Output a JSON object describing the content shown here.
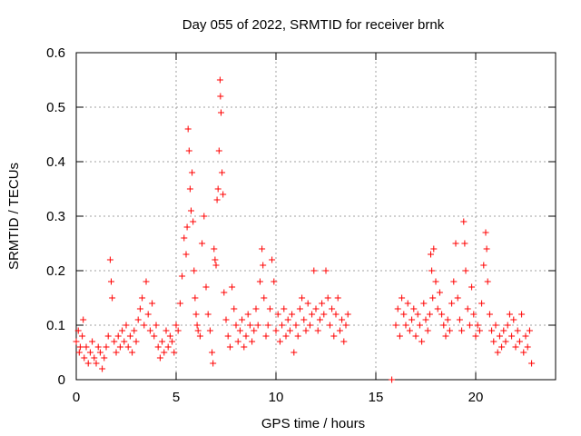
{
  "chart_data": {
    "type": "scatter",
    "title": "Day 055 of 2022, SRMTID for receiver brnk",
    "xlabel": "GPS time / hours",
    "ylabel": "SRMTID / TECUs",
    "xlim": [
      0,
      24
    ],
    "ylim": [
      0,
      0.6
    ],
    "x_ticks": [
      0,
      5,
      10,
      15,
      20
    ],
    "x_tick_labels": [
      "0",
      "5",
      "10",
      "15",
      "20"
    ],
    "y_ticks": [
      0,
      0.1,
      0.2,
      0.3,
      0.4,
      0.5,
      0.6
    ],
    "y_tick_labels": [
      "0",
      "0.1",
      "0.2",
      "0.3",
      "0.4",
      "0.5",
      "0.6"
    ],
    "grid": true,
    "marker": "+",
    "marker_color": "#ff0000",
    "series": [
      {
        "name": "SRMTID",
        "points": [
          [
            0.0,
            0.07
          ],
          [
            0.1,
            0.09
          ],
          [
            0.15,
            0.05
          ],
          [
            0.2,
            0.06
          ],
          [
            0.3,
            0.08
          ],
          [
            0.35,
            0.11
          ],
          [
            0.4,
            0.04
          ],
          [
            0.5,
            0.06
          ],
          [
            0.6,
            0.03
          ],
          [
            0.7,
            0.05
          ],
          [
            0.8,
            0.07
          ],
          [
            0.9,
            0.04
          ],
          [
            1.0,
            0.03
          ],
          [
            1.1,
            0.06
          ],
          [
            1.2,
            0.05
          ],
          [
            1.3,
            0.02
          ],
          [
            1.4,
            0.04
          ],
          [
            1.5,
            0.06
          ],
          [
            1.6,
            0.08
          ],
          [
            1.7,
            0.22
          ],
          [
            1.75,
            0.18
          ],
          [
            1.8,
            0.15
          ],
          [
            1.9,
            0.07
          ],
          [
            2.0,
            0.05
          ],
          [
            2.1,
            0.08
          ],
          [
            2.2,
            0.06
          ],
          [
            2.3,
            0.09
          ],
          [
            2.4,
            0.07
          ],
          [
            2.5,
            0.1
          ],
          [
            2.6,
            0.06
          ],
          [
            2.7,
            0.08
          ],
          [
            2.8,
            0.05
          ],
          [
            2.9,
            0.09
          ],
          [
            3.0,
            0.07
          ],
          [
            3.1,
            0.11
          ],
          [
            3.2,
            0.13
          ],
          [
            3.3,
            0.15
          ],
          [
            3.4,
            0.1
          ],
          [
            3.5,
            0.18
          ],
          [
            3.6,
            0.12
          ],
          [
            3.7,
            0.09
          ],
          [
            3.8,
            0.14
          ],
          [
            3.9,
            0.08
          ],
          [
            4.0,
            0.1
          ],
          [
            4.1,
            0.06
          ],
          [
            4.2,
            0.04
          ],
          [
            4.3,
            0.07
          ],
          [
            4.4,
            0.05
          ],
          [
            4.5,
            0.09
          ],
          [
            4.6,
            0.06
          ],
          [
            4.7,
            0.08
          ],
          [
            4.8,
            0.07
          ],
          [
            4.9,
            0.05
          ],
          [
            5.0,
            0.1
          ],
          [
            5.1,
            0.09
          ],
          [
            5.2,
            0.14
          ],
          [
            5.3,
            0.19
          ],
          [
            5.4,
            0.26
          ],
          [
            5.5,
            0.23
          ],
          [
            5.55,
            0.28
          ],
          [
            5.6,
            0.46
          ],
          [
            5.65,
            0.42
          ],
          [
            5.7,
            0.35
          ],
          [
            5.75,
            0.31
          ],
          [
            5.8,
            0.38
          ],
          [
            5.85,
            0.29
          ],
          [
            5.9,
            0.2
          ],
          [
            5.95,
            0.15
          ],
          [
            6.0,
            0.12
          ],
          [
            6.05,
            0.1
          ],
          [
            6.1,
            0.09
          ],
          [
            6.2,
            0.08
          ],
          [
            6.3,
            0.25
          ],
          [
            6.4,
            0.3
          ],
          [
            6.5,
            0.17
          ],
          [
            6.6,
            0.12
          ],
          [
            6.7,
            0.09
          ],
          [
            6.8,
            0.05
          ],
          [
            6.85,
            0.03
          ],
          [
            6.9,
            0.24
          ],
          [
            6.95,
            0.22
          ],
          [
            7.0,
            0.21
          ],
          [
            7.05,
            0.33
          ],
          [
            7.1,
            0.35
          ],
          [
            7.15,
            0.42
          ],
          [
            7.2,
            0.55
          ],
          [
            7.22,
            0.52
          ],
          [
            7.25,
            0.49
          ],
          [
            7.3,
            0.38
          ],
          [
            7.35,
            0.34
          ],
          [
            7.4,
            0.16
          ],
          [
            7.5,
            0.11
          ],
          [
            7.6,
            0.08
          ],
          [
            7.7,
            0.06
          ],
          [
            7.8,
            0.17
          ],
          [
            7.9,
            0.13
          ],
          [
            8.0,
            0.1
          ],
          [
            8.1,
            0.07
          ],
          [
            8.2,
            0.09
          ],
          [
            8.3,
            0.11
          ],
          [
            8.4,
            0.06
          ],
          [
            8.5,
            0.08
          ],
          [
            8.6,
            0.12
          ],
          [
            8.7,
            0.1
          ],
          [
            8.8,
            0.07
          ],
          [
            8.9,
            0.09
          ],
          [
            9.0,
            0.13
          ],
          [
            9.1,
            0.1
          ],
          [
            9.2,
            0.18
          ],
          [
            9.3,
            0.24
          ],
          [
            9.35,
            0.21
          ],
          [
            9.4,
            0.15
          ],
          [
            9.5,
            0.08
          ],
          [
            9.6,
            0.1
          ],
          [
            9.7,
            0.13
          ],
          [
            9.8,
            0.22
          ],
          [
            9.9,
            0.18
          ],
          [
            10.0,
            0.09
          ],
          [
            10.1,
            0.12
          ],
          [
            10.2,
            0.07
          ],
          [
            10.3,
            0.1
          ],
          [
            10.4,
            0.13
          ],
          [
            10.5,
            0.08
          ],
          [
            10.6,
            0.11
          ],
          [
            10.7,
            0.09
          ],
          [
            10.8,
            0.12
          ],
          [
            10.9,
            0.05
          ],
          [
            11.0,
            0.1
          ],
          [
            11.1,
            0.08
          ],
          [
            11.2,
            0.13
          ],
          [
            11.3,
            0.15
          ],
          [
            11.4,
            0.11
          ],
          [
            11.5,
            0.09
          ],
          [
            11.6,
            0.14
          ],
          [
            11.7,
            0.1
          ],
          [
            11.8,
            0.12
          ],
          [
            11.9,
            0.2
          ],
          [
            12.0,
            0.13
          ],
          [
            12.1,
            0.09
          ],
          [
            12.2,
            0.11
          ],
          [
            12.3,
            0.14
          ],
          [
            12.4,
            0.12
          ],
          [
            12.5,
            0.2
          ],
          [
            12.6,
            0.15
          ],
          [
            12.7,
            0.1
          ],
          [
            12.8,
            0.13
          ],
          [
            12.9,
            0.08
          ],
          [
            13.0,
            0.12
          ],
          [
            13.1,
            0.15
          ],
          [
            13.2,
            0.09
          ],
          [
            13.3,
            0.11
          ],
          [
            13.4,
            0.07
          ],
          [
            13.5,
            0.1
          ],
          [
            13.6,
            0.12
          ],
          [
            15.8,
            0.0
          ],
          [
            16.0,
            0.1
          ],
          [
            16.1,
            0.13
          ],
          [
            16.2,
            0.08
          ],
          [
            16.3,
            0.15
          ],
          [
            16.4,
            0.12
          ],
          [
            16.5,
            0.1
          ],
          [
            16.6,
            0.14
          ],
          [
            16.7,
            0.09
          ],
          [
            16.8,
            0.11
          ],
          [
            16.9,
            0.13
          ],
          [
            17.0,
            0.08
          ],
          [
            17.1,
            0.12
          ],
          [
            17.2,
            0.1
          ],
          [
            17.3,
            0.07
          ],
          [
            17.4,
            0.14
          ],
          [
            17.5,
            0.11
          ],
          [
            17.6,
            0.09
          ],
          [
            17.7,
            0.12
          ],
          [
            17.75,
            0.23
          ],
          [
            17.8,
            0.2
          ],
          [
            17.85,
            0.15
          ],
          [
            17.9,
            0.24
          ],
          [
            18.0,
            0.18
          ],
          [
            18.1,
            0.13
          ],
          [
            18.2,
            0.16
          ],
          [
            18.3,
            0.12
          ],
          [
            18.4,
            0.1
          ],
          [
            18.5,
            0.08
          ],
          [
            18.6,
            0.11
          ],
          [
            18.7,
            0.09
          ],
          [
            18.8,
            0.14
          ],
          [
            18.9,
            0.18
          ],
          [
            19.0,
            0.25
          ],
          [
            19.1,
            0.15
          ],
          [
            19.2,
            0.11
          ],
          [
            19.3,
            0.09
          ],
          [
            19.4,
            0.29
          ],
          [
            19.45,
            0.25
          ],
          [
            19.5,
            0.2
          ],
          [
            19.6,
            0.13
          ],
          [
            19.7,
            0.1
          ],
          [
            19.8,
            0.17
          ],
          [
            19.9,
            0.12
          ],
          [
            20.0,
            0.08
          ],
          [
            20.1,
            0.1
          ],
          [
            20.2,
            0.09
          ],
          [
            20.3,
            0.14
          ],
          [
            20.4,
            0.21
          ],
          [
            20.5,
            0.27
          ],
          [
            20.55,
            0.24
          ],
          [
            20.6,
            0.18
          ],
          [
            20.7,
            0.12
          ],
          [
            20.8,
            0.09
          ],
          [
            20.9,
            0.07
          ],
          [
            21.0,
            0.1
          ],
          [
            21.1,
            0.05
          ],
          [
            21.2,
            0.08
          ],
          [
            21.3,
            0.06
          ],
          [
            21.4,
            0.09
          ],
          [
            21.5,
            0.07
          ],
          [
            21.6,
            0.1
          ],
          [
            21.7,
            0.12
          ],
          [
            21.8,
            0.08
          ],
          [
            21.9,
            0.11
          ],
          [
            22.0,
            0.06
          ],
          [
            22.1,
            0.09
          ],
          [
            22.2,
            0.07
          ],
          [
            22.3,
            0.12
          ],
          [
            22.4,
            0.05
          ],
          [
            22.5,
            0.08
          ],
          [
            22.6,
            0.06
          ],
          [
            22.7,
            0.09
          ],
          [
            22.8,
            0.03
          ]
        ]
      }
    ]
  }
}
